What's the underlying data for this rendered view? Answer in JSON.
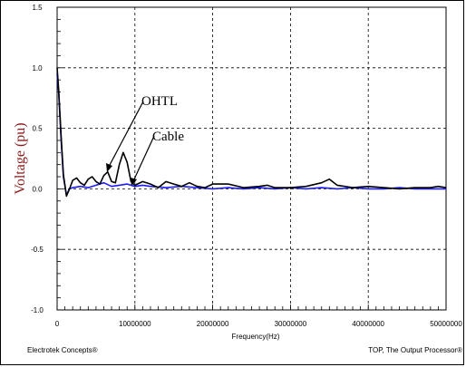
{
  "chart_data": {
    "type": "line",
    "title": "",
    "xlabel": "Frequency(Hz)",
    "ylabel": "Voltage (pu)",
    "xlim": [
      0,
      50000000
    ],
    "ylim": [
      -1.0,
      1.5
    ],
    "xticks": [
      0,
      10000000,
      20000000,
      30000000,
      40000000,
      50000000
    ],
    "xtick_labels": [
      "0",
      "10000000",
      "20000000",
      "30000000",
      "40000000",
      "50000000"
    ],
    "yticks": [
      -1.0,
      -0.5,
      0.0,
      0.5,
      1.0,
      1.5
    ],
    "ytick_labels": [
      "-1.0",
      "-0.5",
      "0.0",
      "0.5",
      "1.0",
      "1.5"
    ],
    "grid": true,
    "grid_style": "dashed",
    "series": [
      {
        "name": "OHTL",
        "color": "#000000",
        "x": [
          0,
          200000,
          500000,
          800000,
          1200000,
          1600000,
          2000000,
          2500000,
          3000000,
          3500000,
          4000000,
          4500000,
          5000000,
          5500000,
          6000000,
          6500000,
          7000000,
          7500000,
          8000000,
          8500000,
          9000000,
          9500000,
          10000000,
          11000000,
          12000000,
          13000000,
          14000000,
          15000000,
          16000000,
          17000000,
          18000000,
          19000000,
          20000000,
          22000000,
          24000000,
          26000000,
          27000000,
          28000000,
          30000000,
          32000000,
          34000000,
          35000000,
          36000000,
          38000000,
          40000000,
          42000000,
          44000000,
          46000000,
          48000000,
          49000000,
          50000000
        ],
        "y": [
          1.0,
          0.82,
          0.45,
          0.12,
          -0.06,
          0.0,
          0.07,
          0.09,
          0.05,
          0.03,
          0.08,
          0.1,
          0.06,
          0.04,
          0.11,
          0.14,
          0.06,
          0.05,
          0.2,
          0.3,
          0.22,
          0.06,
          0.03,
          0.06,
          0.04,
          0.01,
          0.06,
          0.04,
          0.02,
          0.05,
          0.02,
          0.01,
          0.04,
          0.04,
          0.01,
          0.02,
          0.03,
          0.01,
          0.01,
          0.02,
          0.05,
          0.08,
          0.03,
          0.01,
          0.02,
          0.01,
          0.0,
          0.01,
          0.01,
          0.02,
          0.01
        ]
      },
      {
        "name": "Cable",
        "color": "#1c1cff",
        "x": [
          0,
          200000,
          500000,
          800000,
          1200000,
          1600000,
          2000000,
          3000000,
          4000000,
          5000000,
          6000000,
          7000000,
          8000000,
          9000000,
          10000000,
          11000000,
          12000000,
          14000000,
          16000000,
          18000000,
          20000000,
          22000000,
          24000000,
          26000000,
          28000000,
          30000000,
          32000000,
          34000000,
          36000000,
          38000000,
          40000000,
          42000000,
          44000000,
          46000000,
          48000000,
          50000000
        ],
        "y": [
          0.95,
          0.8,
          0.42,
          0.1,
          -0.05,
          0.0,
          0.01,
          0.02,
          0.01,
          0.03,
          0.05,
          0.02,
          0.03,
          0.04,
          0.02,
          0.03,
          0.02,
          0.01,
          0.02,
          0.01,
          0.0,
          0.01,
          0.0,
          0.01,
          0.0,
          0.01,
          0.0,
          0.01,
          0.0,
          0.01,
          0.0,
          0.0,
          0.01,
          0.0,
          0.0,
          0.0
        ]
      }
    ],
    "annotations": [
      {
        "text": "OHTL",
        "target_series": "OHTL"
      },
      {
        "text": "Cable",
        "target_series": "Cable"
      }
    ]
  },
  "footer": {
    "left": "Electrotek Concepts®",
    "right": "TOP, The Output Processor®"
  }
}
